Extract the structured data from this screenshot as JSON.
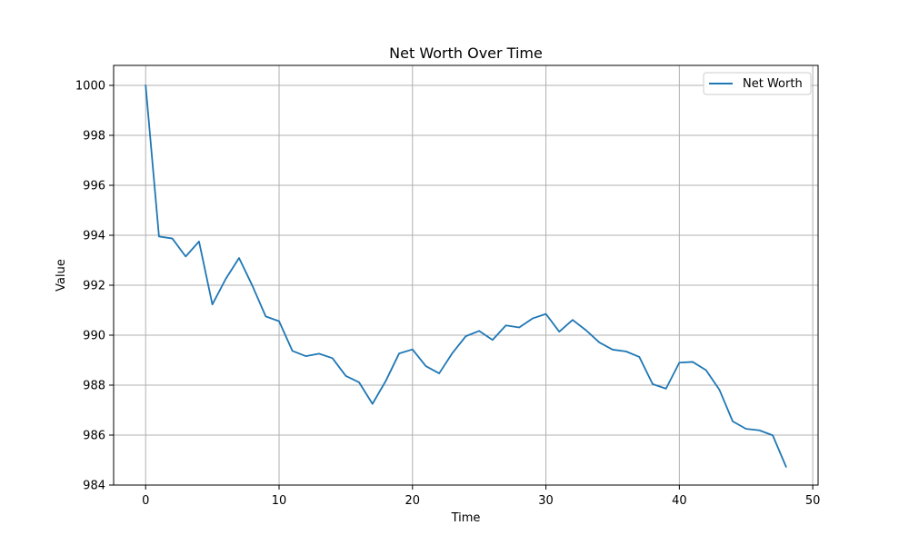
{
  "chart_data": {
    "type": "line",
    "title": "Net Worth Over Time",
    "xlabel": "Time",
    "ylabel": "Value",
    "xlim": [
      -2.4,
      50.4
    ],
    "ylim": [
      984,
      1000.8
    ],
    "xticks": [
      0,
      10,
      20,
      30,
      40,
      50
    ],
    "yticks": [
      984,
      986,
      988,
      990,
      992,
      994,
      996,
      998,
      1000
    ],
    "grid": true,
    "legend_position": "top-right",
    "colors": {
      "series": "#1f77b4",
      "grid": "#b0b0b0",
      "axis": "#000000"
    },
    "series": [
      {
        "name": "Net Worth",
        "x": [
          0,
          1,
          2,
          3,
          4,
          5,
          6,
          7,
          8,
          9,
          10,
          11,
          12,
          13,
          14,
          15,
          16,
          17,
          18,
          19,
          20,
          21,
          22,
          23,
          24,
          25,
          26,
          27,
          28,
          29,
          30,
          31,
          32,
          33,
          34,
          35,
          36,
          37,
          38,
          39,
          40,
          41,
          42,
          43,
          44,
          45,
          46,
          47,
          48
        ],
        "values": [
          1000.0,
          993.95,
          993.87,
          993.15,
          993.75,
          991.23,
          992.25,
          993.09,
          991.98,
          990.75,
          990.56,
          989.37,
          989.16,
          989.26,
          989.08,
          988.37,
          988.11,
          987.25,
          988.17,
          989.27,
          989.43,
          988.76,
          988.47,
          989.29,
          989.96,
          990.17,
          989.81,
          990.39,
          990.31,
          990.67,
          990.85,
          990.14,
          990.61,
          990.2,
          989.71,
          989.42,
          989.35,
          989.13,
          988.04,
          987.86,
          988.9,
          988.93,
          988.6,
          987.82,
          986.55,
          986.25,
          986.19,
          985.99,
          984.73
        ]
      }
    ]
  }
}
